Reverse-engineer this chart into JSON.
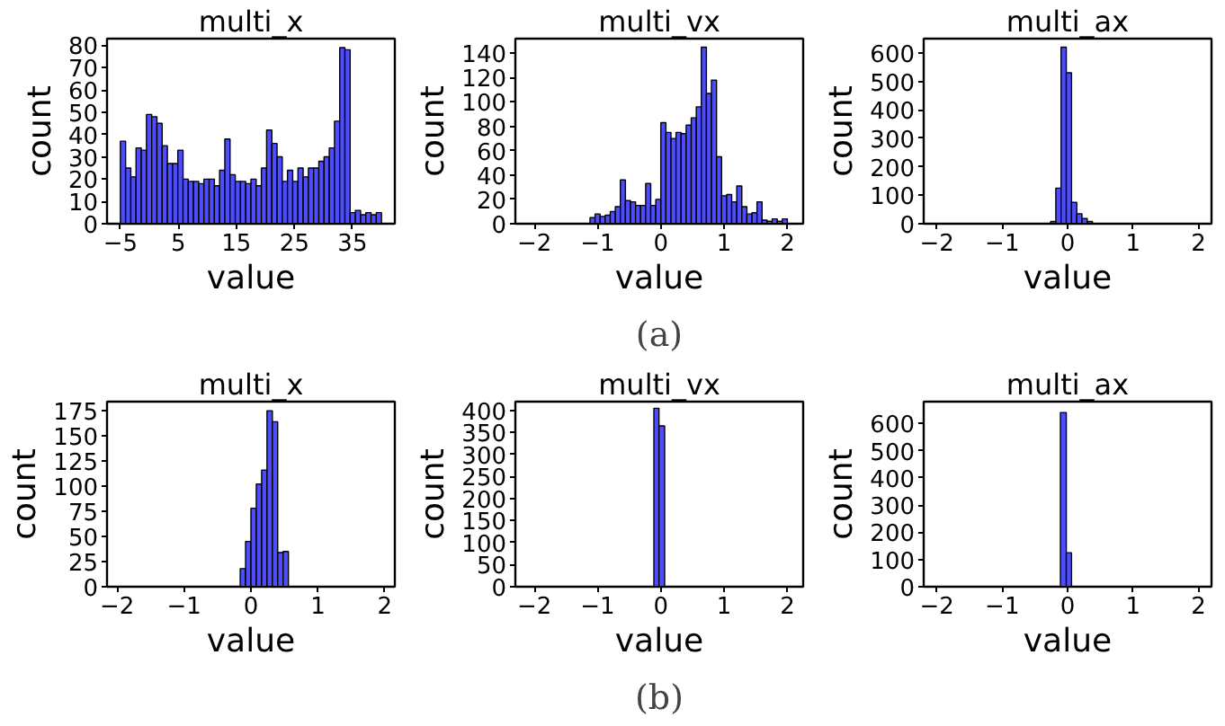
{
  "chart_data": [
    {
      "type": "histogram",
      "title": "multi_x",
      "xlabel": "value",
      "ylabel": "count",
      "color": "#4d4dff",
      "xlim": [
        -7.3,
        42.3
      ],
      "xticks": [
        -5,
        5,
        15,
        25,
        35
      ],
      "ylim": [
        0,
        83
      ],
      "yticks": [
        0,
        10,
        20,
        30,
        40,
        50,
        60,
        70,
        80
      ],
      "bins": [
        -5.0,
        -4.1,
        -3.2,
        -2.3,
        -1.4,
        -0.5,
        0.4,
        1.3,
        2.2,
        3.1,
        4.0,
        4.9,
        5.8,
        6.7,
        7.6,
        8.5,
        9.4,
        10.3,
        11.2,
        12.1,
        13.0,
        13.9,
        14.8,
        15.7,
        16.6,
        17.5,
        18.4,
        19.3,
        20.2,
        21.1,
        22.0,
        22.9,
        23.8,
        24.7,
        25.6,
        26.5,
        27.4,
        28.3,
        29.2,
        30.1,
        31.0,
        31.9,
        32.8,
        33.7,
        34.6,
        35.5,
        36.4,
        37.3,
        38.2,
        39.1,
        40.0
      ],
      "values": [
        37,
        25,
        21,
        34,
        33,
        49,
        48,
        45,
        35,
        27,
        27,
        33,
        20,
        19,
        19,
        18,
        20,
        20,
        17,
        24,
        38,
        22,
        19,
        19,
        18,
        20,
        17,
        25,
        42,
        36,
        30,
        19,
        24,
        19,
        25,
        21,
        25,
        25,
        28,
        30,
        34,
        46,
        79,
        78,
        5,
        6,
        4,
        5,
        4,
        5
      ]
    },
    {
      "type": "histogram",
      "title": "multi_vx",
      "xlabel": "value",
      "ylabel": "count",
      "color": "#4d4dff",
      "xlim": [
        -2.3,
        2.25
      ],
      "xticks": [
        -2,
        -1,
        0,
        1,
        2
      ],
      "ylim": [
        0,
        152
      ],
      "yticks": [
        0,
        20,
        40,
        60,
        80,
        100,
        120,
        140
      ],
      "annotations": [
        "(a)"
      ],
      "bins": [
        -1.12,
        -1.04,
        -0.96,
        -0.88,
        -0.8,
        -0.72,
        -0.64,
        -0.56,
        -0.48,
        -0.4,
        -0.32,
        -0.24,
        -0.16,
        -0.08,
        0.0,
        0.08,
        0.16,
        0.24,
        0.32,
        0.4,
        0.48,
        0.56,
        0.64,
        0.72,
        0.8,
        0.88,
        0.96,
        1.04,
        1.12,
        1.2,
        1.28,
        1.36,
        1.44,
        1.52,
        1.6,
        1.68,
        1.76,
        1.84,
        1.92,
        2.0
      ],
      "values": [
        5,
        8,
        6,
        7,
        10,
        14,
        36,
        19,
        18,
        15,
        15,
        33,
        15,
        20,
        83,
        75,
        70,
        75,
        74,
        81,
        87,
        96,
        145,
        107,
        118,
        55,
        23,
        24,
        18,
        31,
        14,
        8,
        9,
        18,
        3,
        2,
        4,
        2,
        4
      ]
    },
    {
      "type": "histogram",
      "title": "multi_ax",
      "xlabel": "value",
      "ylabel": "count",
      "color": "#4d4dff",
      "xlim": [
        -2.2,
        2.2
      ],
      "xticks": [
        -2,
        -1,
        0,
        1,
        2
      ],
      "ylim": [
        0,
        650
      ],
      "yticks": [
        0,
        100,
        200,
        300,
        400,
        500,
        600
      ],
      "bins": [
        -0.26,
        -0.18,
        -0.1,
        -0.02,
        0.06,
        0.14,
        0.22,
        0.3,
        0.38
      ],
      "values": [
        8,
        125,
        620,
        530,
        75,
        35,
        18,
        8
      ]
    },
    {
      "type": "histogram",
      "title": "multi_x",
      "xlabel": "value",
      "ylabel": "count",
      "color": "#4d4dff",
      "xlim": [
        -2.15,
        2.15
      ],
      "xticks": [
        -2,
        -1,
        0,
        1,
        2
      ],
      "ylim": [
        0,
        184
      ],
      "yticks": [
        0,
        25,
        50,
        75,
        100,
        125,
        150,
        175
      ],
      "bins": [
        -0.16,
        -0.08,
        0.0,
        0.08,
        0.16,
        0.24,
        0.32,
        0.4,
        0.48,
        0.56
      ],
      "values": [
        18,
        45,
        78,
        102,
        116,
        175,
        164,
        34,
        35
      ]
    },
    {
      "type": "histogram",
      "title": "multi_vx",
      "xlabel": "value",
      "ylabel": "count",
      "color": "#4d4dff",
      "xlim": [
        -2.3,
        2.25
      ],
      "xticks": [
        -2,
        -1,
        0,
        1,
        2
      ],
      "ylim": [
        0,
        420
      ],
      "yticks": [
        0,
        50,
        100,
        150,
        200,
        250,
        300,
        350,
        400
      ],
      "annotations": [
        "(b)"
      ],
      "bins": [
        -0.11,
        -0.03,
        0.06
      ],
      "values": [
        405,
        365
      ]
    },
    {
      "type": "histogram",
      "title": "multi_ax",
      "xlabel": "value",
      "ylabel": "count",
      "color": "#4d4dff",
      "xlim": [
        -2.2,
        2.2
      ],
      "xticks": [
        -2,
        -1,
        0,
        1,
        2
      ],
      "ylim": [
        0,
        680
      ],
      "yticks": [
        0,
        100,
        200,
        300,
        400,
        500,
        600
      ],
      "bins": [
        -0.11,
        -0.02,
        0.06
      ],
      "values": [
        640,
        125
      ]
    }
  ]
}
